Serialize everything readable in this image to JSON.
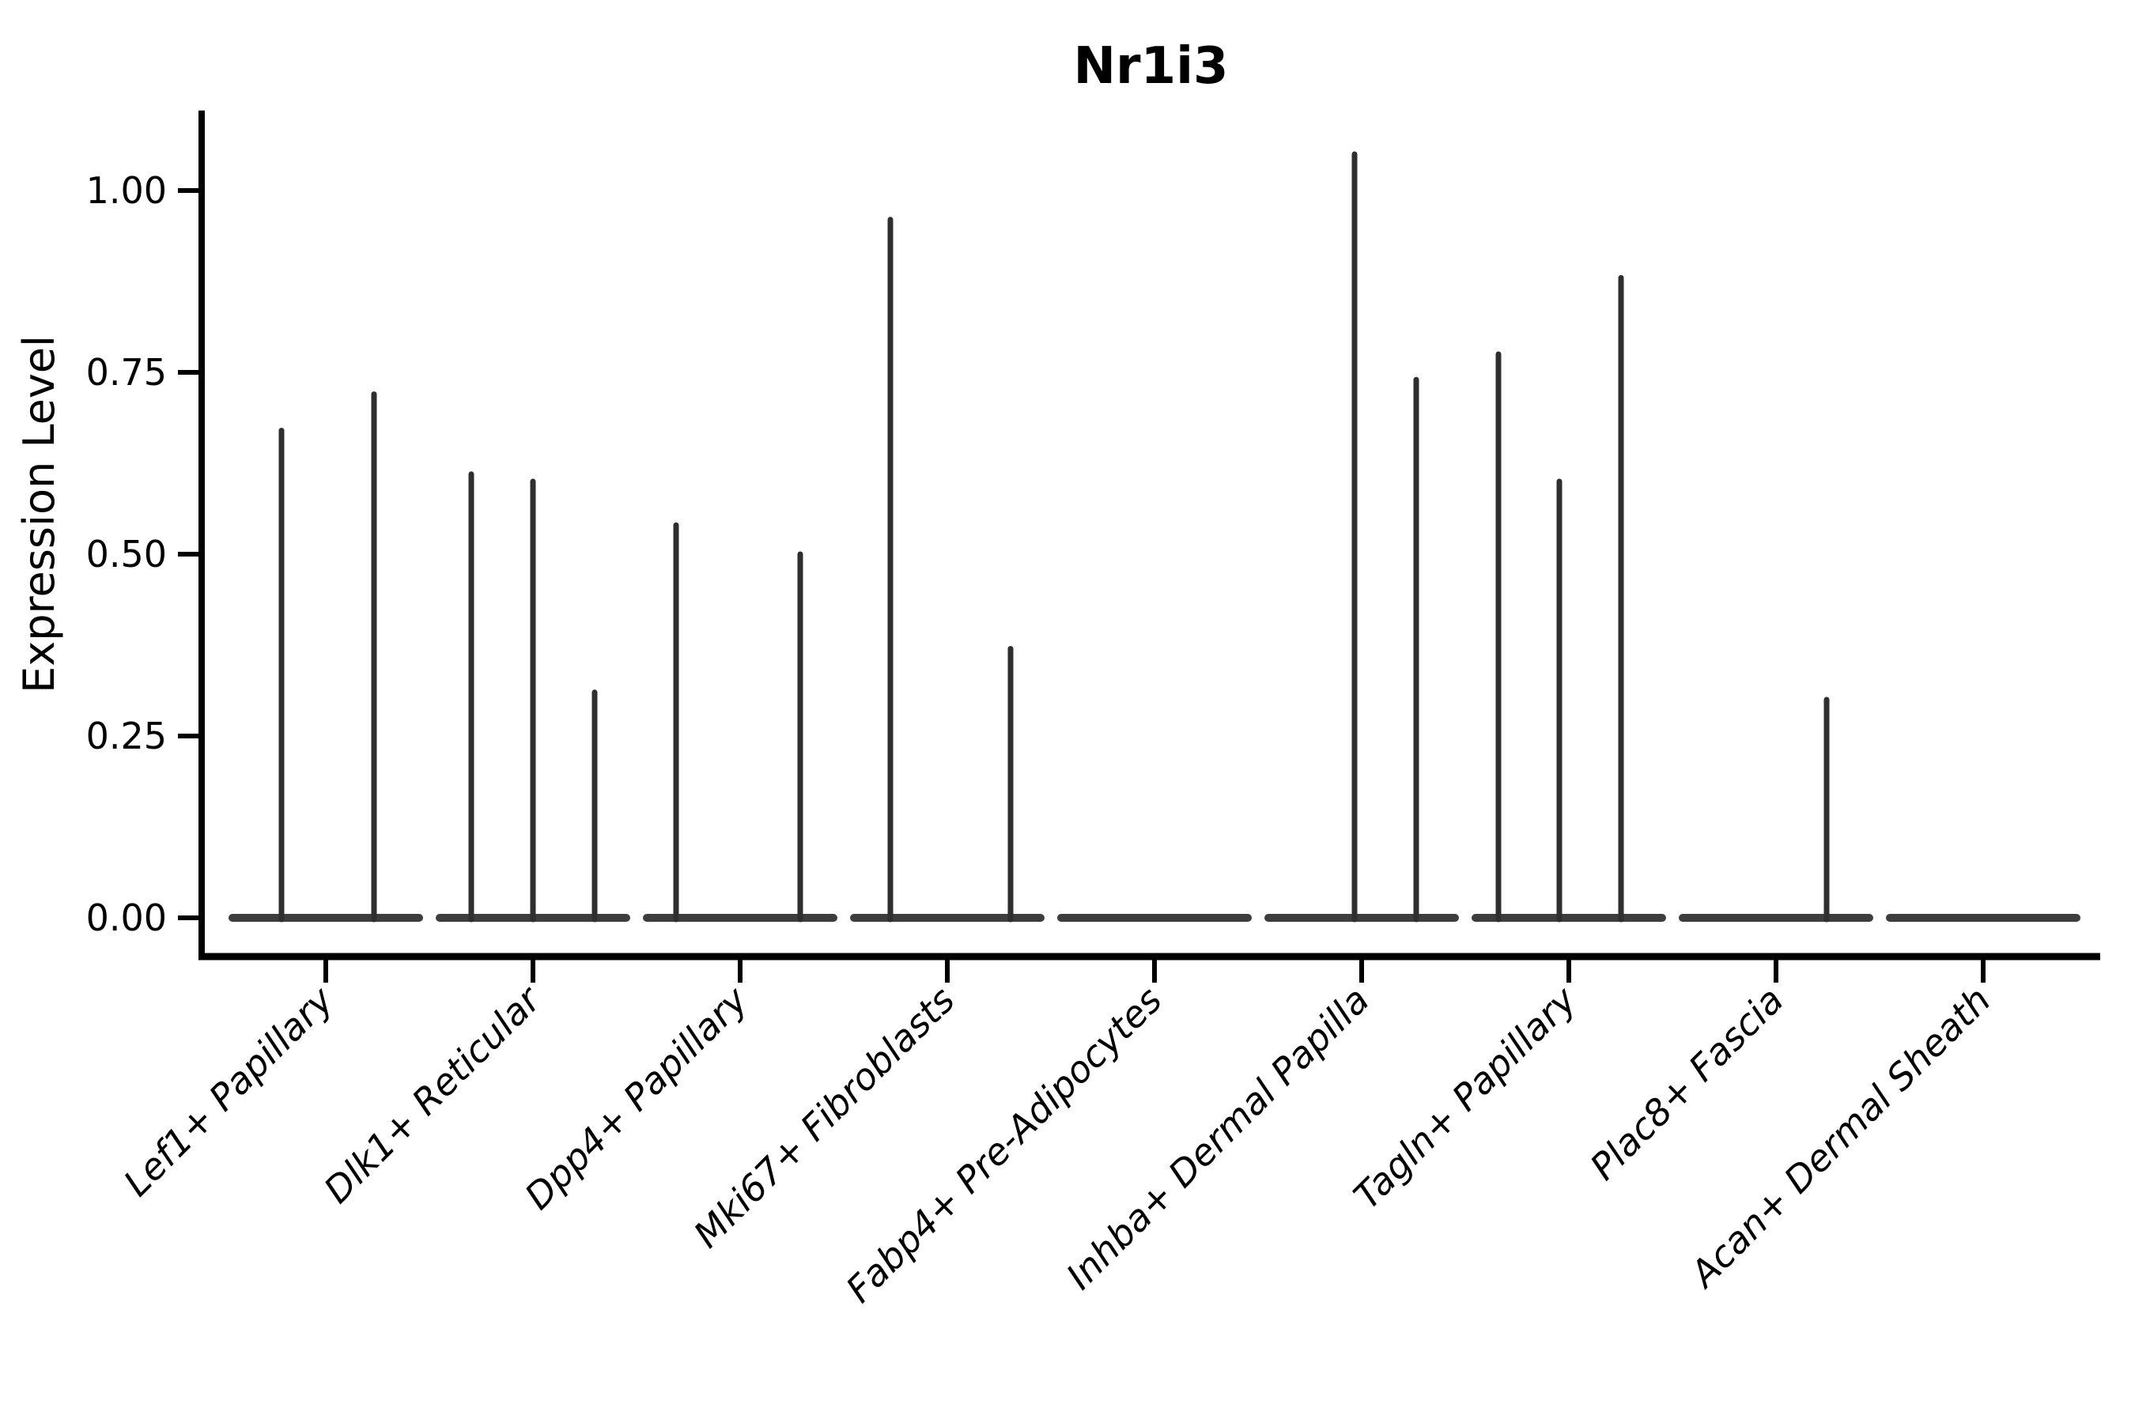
{
  "chart_data": {
    "type": "violin",
    "title": "Nr1i3",
    "xlabel": "",
    "ylabel": "Expression Level",
    "ylim": [
      0,
      1.11
    ],
    "grid": false,
    "legend": "none",
    "yticks": [
      {
        "label": "0.00",
        "value": 0.0
      },
      {
        "label": "0.25",
        "value": 0.25
      },
      {
        "label": "0.50",
        "value": 0.5
      },
      {
        "label": "0.75",
        "value": 0.75
      },
      {
        "label": "1.00",
        "value": 1.0
      }
    ],
    "categories": [
      "Lef1+ Papillary",
      "Dlk1+ Reticular",
      "Dpp4+ Papillary",
      "Mki67+ Fibroblasts",
      "Fabp4+ Pre-Adipocytes",
      "Inhba+ Dermal Papilla",
      "Tagln+ Papillary",
      "Plac8+ Fascia",
      "Acan+ Dermal Sheath"
    ],
    "violins": [
      {
        "category": "Lef1+ Papillary",
        "baseline_value": 0,
        "spikes": [
          {
            "dx": -56,
            "value": 0.67
          },
          {
            "dx": 61,
            "value": 0.72
          }
        ]
      },
      {
        "category": "Dlk1+ Reticular",
        "baseline_value": 0,
        "spikes": [
          {
            "dx": -78,
            "value": 0.61
          },
          {
            "dx": 0,
            "value": 0.6
          },
          {
            "dx": 78,
            "value": 0.31
          }
        ]
      },
      {
        "category": "Dpp4+ Papillary",
        "baseline_value": 0,
        "spikes": [
          {
            "dx": -81,
            "value": 0.54
          },
          {
            "dx": 76,
            "value": 0.5
          }
        ]
      },
      {
        "category": "Mki67+ Fibroblasts",
        "baseline_value": 0,
        "spikes": [
          {
            "dx": -72,
            "value": 0.96
          },
          {
            "dx": 80,
            "value": 0.37
          }
        ]
      },
      {
        "category": "Fabp4+ Pre-Adipocytes",
        "baseline_value": 0,
        "spikes": []
      },
      {
        "category": "Inhba+ Dermal Papilla",
        "baseline_value": 0,
        "spikes": [
          {
            "dx": -9,
            "value": 1.05
          },
          {
            "dx": 69,
            "value": 0.74
          }
        ]
      },
      {
        "category": "Tagln+ Papillary",
        "baseline_value": 0,
        "spikes": [
          {
            "dx": -89,
            "value": 0.775
          },
          {
            "dx": -12,
            "value": 0.6
          },
          {
            "dx": 66,
            "value": 0.88
          }
        ]
      },
      {
        "category": "Plac8+ Fascia",
        "baseline_value": 0,
        "spikes": [
          {
            "dx": 64,
            "value": 0.3
          }
        ]
      },
      {
        "category": "Acan+ Dermal Sheath",
        "baseline_value": 0,
        "spikes": []
      }
    ],
    "colors": {
      "axis": "#000000",
      "spike": "#2f2f2f",
      "baseline": "#3d3d3d",
      "text": "#000000",
      "background": "#ffffff"
    }
  }
}
